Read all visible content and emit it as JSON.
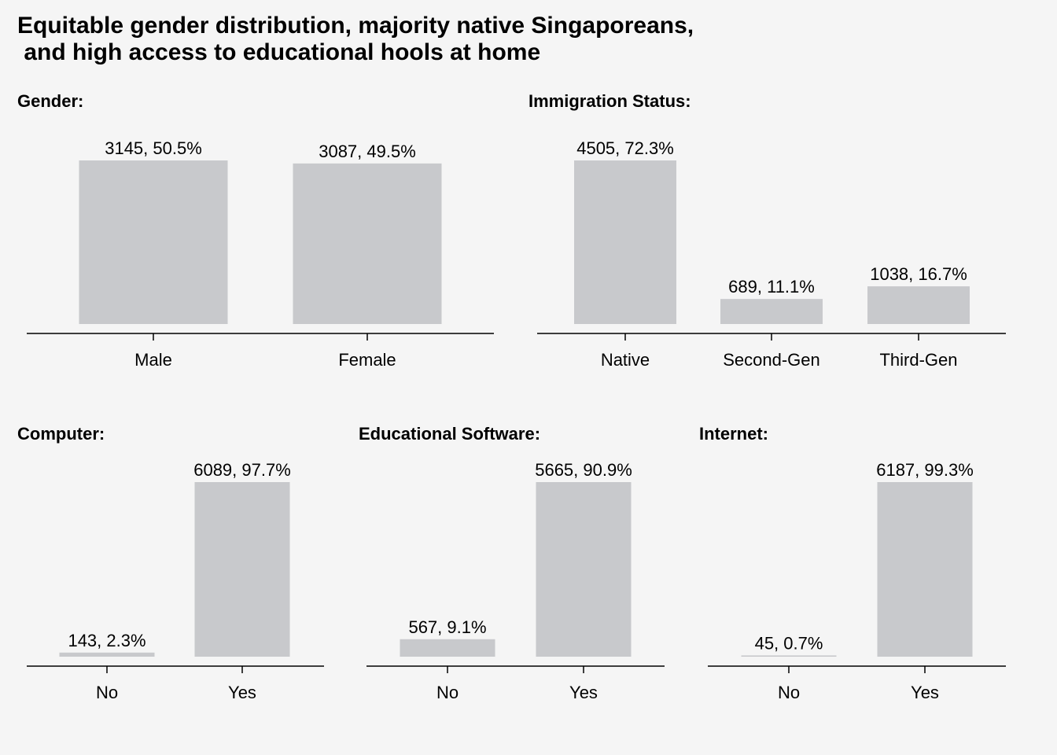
{
  "title_line1": "Equitable gender distribution, majority native Singaporeans,",
  "title_line2": " and high access to educational hools at home",
  "bar_color": "#c8c9cc",
  "chart_data": [
    {
      "type": "bar",
      "title": "Gender:",
      "categories": [
        "Male",
        "Female"
      ],
      "values": [
        3145,
        3087
      ],
      "labels": [
        "3145, 50.5%",
        "3087, 49.5%"
      ]
    },
    {
      "type": "bar",
      "title": "Immigration Status:",
      "categories": [
        "Native",
        "Second-Gen",
        "Third-Gen"
      ],
      "values": [
        4505,
        689,
        1038
      ],
      "labels": [
        "4505, 72.3%",
        "689, 11.1%",
        "1038, 16.7%"
      ]
    },
    {
      "type": "bar",
      "title": "Computer:",
      "categories": [
        "No",
        "Yes"
      ],
      "values": [
        143,
        6089
      ],
      "labels": [
        "143, 2.3%",
        "6089, 97.7%"
      ]
    },
    {
      "type": "bar",
      "title": "Educational Software:",
      "categories": [
        "No",
        "Yes"
      ],
      "values": [
        567,
        5665
      ],
      "labels": [
        "567, 9.1%",
        "5665, 90.9%"
      ]
    },
    {
      "type": "bar",
      "title": "Internet:",
      "categories": [
        "No",
        "Yes"
      ],
      "values": [
        45,
        6187
      ],
      "labels": [
        "45, 0.7%",
        "6187, 99.3%"
      ]
    }
  ]
}
